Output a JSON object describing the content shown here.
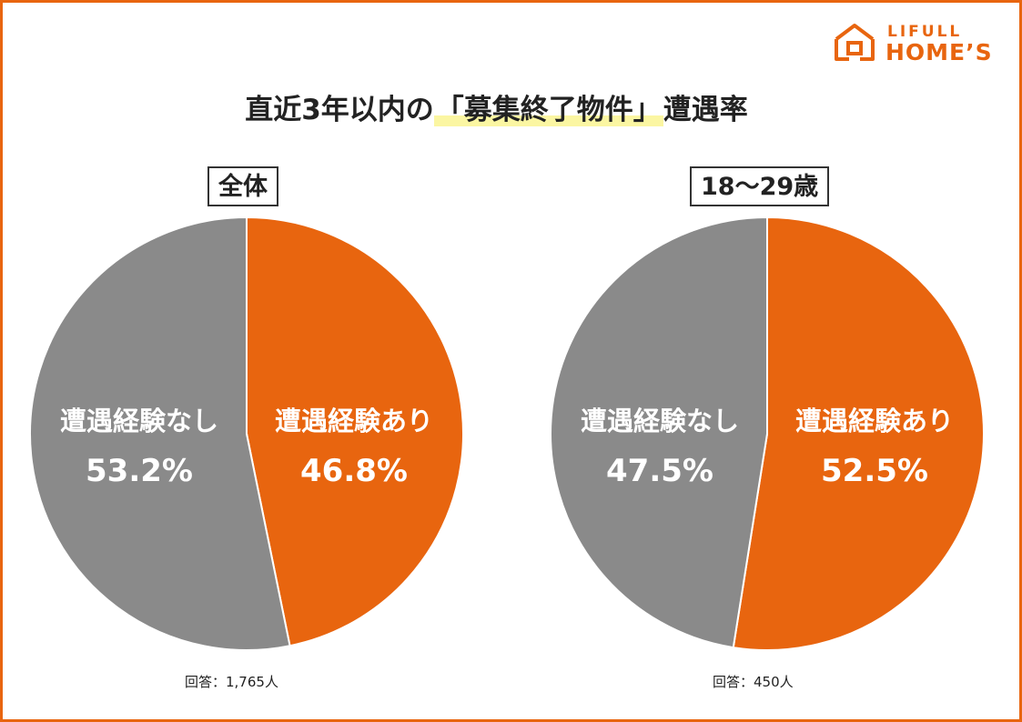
{
  "logo": {
    "line1": "LIFULL",
    "line2": "HOME’S",
    "icon": "house-icon",
    "color": "#e8650f"
  },
  "title": {
    "prefix": "直近3年以内の",
    "highlight": "「募集終了物件」",
    "suffix": "遭遇率"
  },
  "colors": {
    "yes": "#e8650f",
    "no": "#8a8a8a",
    "frame": "#e8650f",
    "highlight": "#fbf6a2"
  },
  "chart_data": [
    {
      "type": "pie",
      "title": "全体",
      "slices": [
        {
          "label": "遭遇経験あり",
          "value": 46.8,
          "value_label": "46.8%"
        },
        {
          "label": "遭遇経験なし",
          "value": 53.2,
          "value_label": "53.2%"
        }
      ],
      "note": "回答：1,765人"
    },
    {
      "type": "pie",
      "title": "18～29歳",
      "slices": [
        {
          "label": "遭遇経験あり",
          "value": 52.5,
          "value_label": "52.5%"
        },
        {
          "label": "遭遇経験なし",
          "value": 47.5,
          "value_label": "47.5%"
        }
      ],
      "note": "回答：450人"
    }
  ]
}
